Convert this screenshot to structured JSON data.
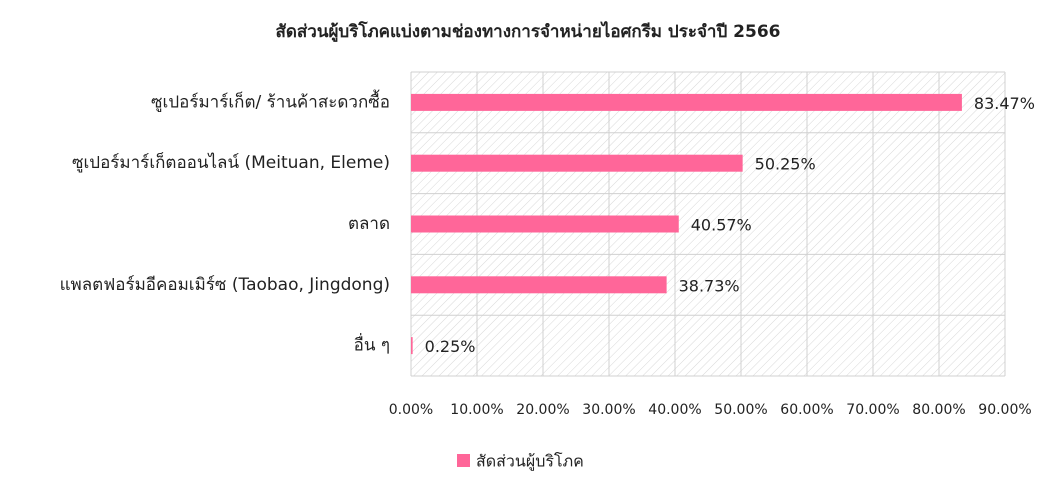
{
  "chart_data": {
    "type": "bar",
    "orientation": "horizontal",
    "title": "สัดส่วนผู้บริโภคแบ่งตามช่องทางการจำหน่ายไอศกรีม ประจำปี 2566",
    "categories": [
      "ซูเปอร์มาร์เก็ต/ ร้านค้าสะดวกซื้อ",
      "ซูเปอร์มาร์เก็ตออนไลน์ (Meituan, Eleme)",
      "ตลาด",
      "แพลตฟอร์มอีคอมเมิร์ซ (Taobao, Jingdong)",
      "อื่น ๆ"
    ],
    "series": [
      {
        "name": "สัดส่วนผู้บริโภค",
        "color": "#ff6699",
        "values": [
          83.47,
          50.25,
          40.57,
          38.73,
          0.25
        ],
        "value_labels": [
          "83.47%",
          "50.25%",
          "40.57%",
          "38.73%",
          "0.25%"
        ]
      }
    ],
    "xlim": [
      0,
      90
    ],
    "xticks": [
      {
        "value": 0,
        "label": "0.00%"
      },
      {
        "value": 10,
        "label": "10.00%"
      },
      {
        "value": 20,
        "label": "20.00%"
      },
      {
        "value": 30,
        "label": "30.00%"
      },
      {
        "value": 40,
        "label": "40.00%"
      },
      {
        "value": 50,
        "label": "50.00%"
      },
      {
        "value": 60,
        "label": "60.00%"
      },
      {
        "value": 70,
        "label": "70.00%"
      },
      {
        "value": 80,
        "label": "80.00%"
      },
      {
        "value": 90,
        "label": "90.00%"
      }
    ],
    "grid": true,
    "legend": "bottom"
  }
}
